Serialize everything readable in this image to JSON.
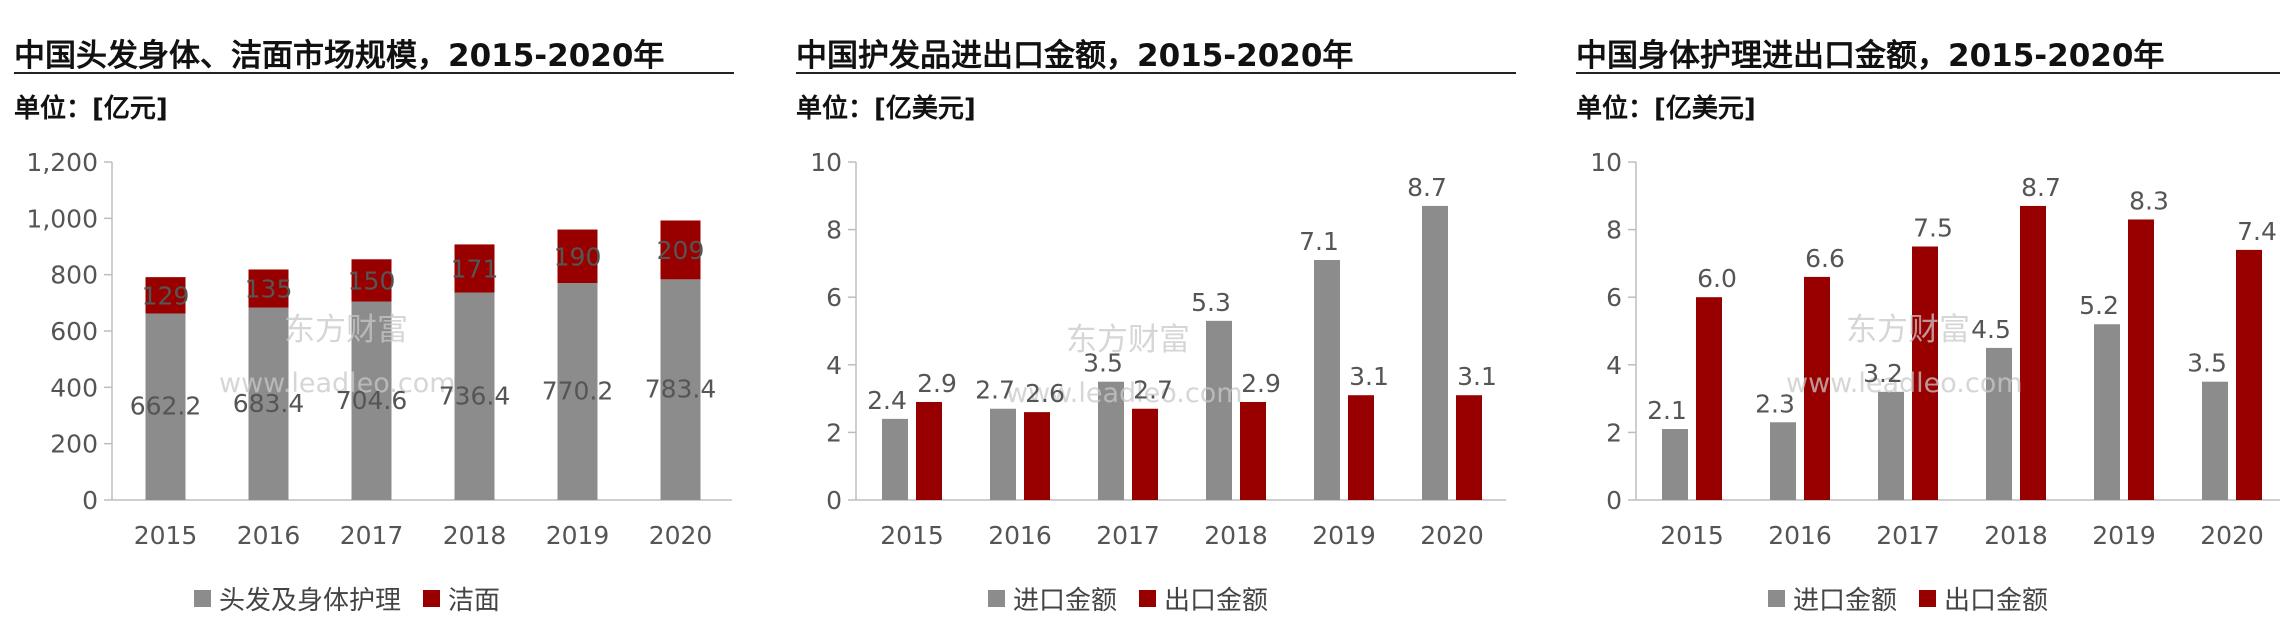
{
  "colors": {
    "gray": "#8c8c8c",
    "red": "#980000"
  },
  "watermark": {
    "cn": "东方财富",
    "url": "www.leadleo.com"
  },
  "chart_data": [
    {
      "type": "bar",
      "stacked": true,
      "title": "中国头发身体、洁面市场规模，2015-2020年",
      "unit": "单位：[亿元]",
      "categories": [
        "2015",
        "2016",
        "2017",
        "2018",
        "2019",
        "2020"
      ],
      "ylim": [
        0,
        1200
      ],
      "yticks": [
        "0",
        "200",
        "400",
        "600",
        "800",
        "1,000",
        "1,200"
      ],
      "yticks_values": [
        0,
        200,
        400,
        600,
        800,
        1000,
        1200
      ],
      "series": [
        {
          "name": "头发及身体护理",
          "values": [
            662.2,
            683.4,
            704.6,
            736.4,
            770.2,
            783.4
          ],
          "labels": [
            "662.2",
            "683.4",
            "704.6",
            "736.4",
            "770.2",
            "783.4"
          ],
          "color": "#8c8c8c"
        },
        {
          "name": "洁面",
          "values": [
            129,
            135,
            150,
            171,
            190,
            209
          ],
          "labels": [
            "129",
            "135",
            "150",
            "171",
            "190",
            "209"
          ],
          "color": "#980000"
        }
      ],
      "legend": "bottom"
    },
    {
      "type": "bar",
      "stacked": false,
      "title": "中国护发品进出口金额，2015-2020年",
      "unit": "单位：[亿美元]",
      "categories": [
        "2015",
        "2016",
        "2017",
        "2018",
        "2019",
        "2020"
      ],
      "ylim": [
        0,
        10
      ],
      "yticks": [
        "0",
        "2",
        "4",
        "6",
        "8",
        "10"
      ],
      "yticks_values": [
        0,
        2,
        4,
        6,
        8,
        10
      ],
      "series": [
        {
          "name": "进口金额",
          "values": [
            2.4,
            2.7,
            3.5,
            5.3,
            7.1,
            8.7
          ],
          "labels": [
            "2.4",
            "2.7",
            "3.5",
            "5.3",
            "7.1",
            "8.7"
          ],
          "color": "#8c8c8c"
        },
        {
          "name": "出口金额",
          "values": [
            2.9,
            2.6,
            2.7,
            2.9,
            3.1,
            3.1
          ],
          "labels": [
            "2.9",
            "2.6",
            "2.7",
            "2.9",
            "3.1",
            "3.1"
          ],
          "color": "#980000"
        }
      ],
      "legend": "bottom"
    },
    {
      "type": "bar",
      "stacked": false,
      "title": "中国身体护理进出口金额，2015-2020年",
      "unit": "单位：[亿美元]",
      "categories": [
        "2015",
        "2016",
        "2017",
        "2018",
        "2019",
        "2020"
      ],
      "ylim": [
        0,
        10
      ],
      "yticks": [
        "0",
        "2",
        "4",
        "6",
        "8",
        "10"
      ],
      "yticks_values": [
        0,
        2,
        4,
        6,
        8,
        10
      ],
      "series": [
        {
          "name": "进口金额",
          "values": [
            2.1,
            2.3,
            3.2,
            4.5,
            5.2,
            3.5
          ],
          "labels": [
            "2.1",
            "2.3",
            "3.2",
            "4.5",
            "5.2",
            "3.5"
          ],
          "color": "#8c8c8c"
        },
        {
          "name": "出口金额",
          "values": [
            6.0,
            6.6,
            7.5,
            8.7,
            8.3,
            7.4
          ],
          "labels": [
            "6.0",
            "6.6",
            "7.5",
            "8.7",
            "8.3",
            "7.4"
          ],
          "color": "#980000"
        }
      ],
      "legend": "bottom"
    }
  ]
}
